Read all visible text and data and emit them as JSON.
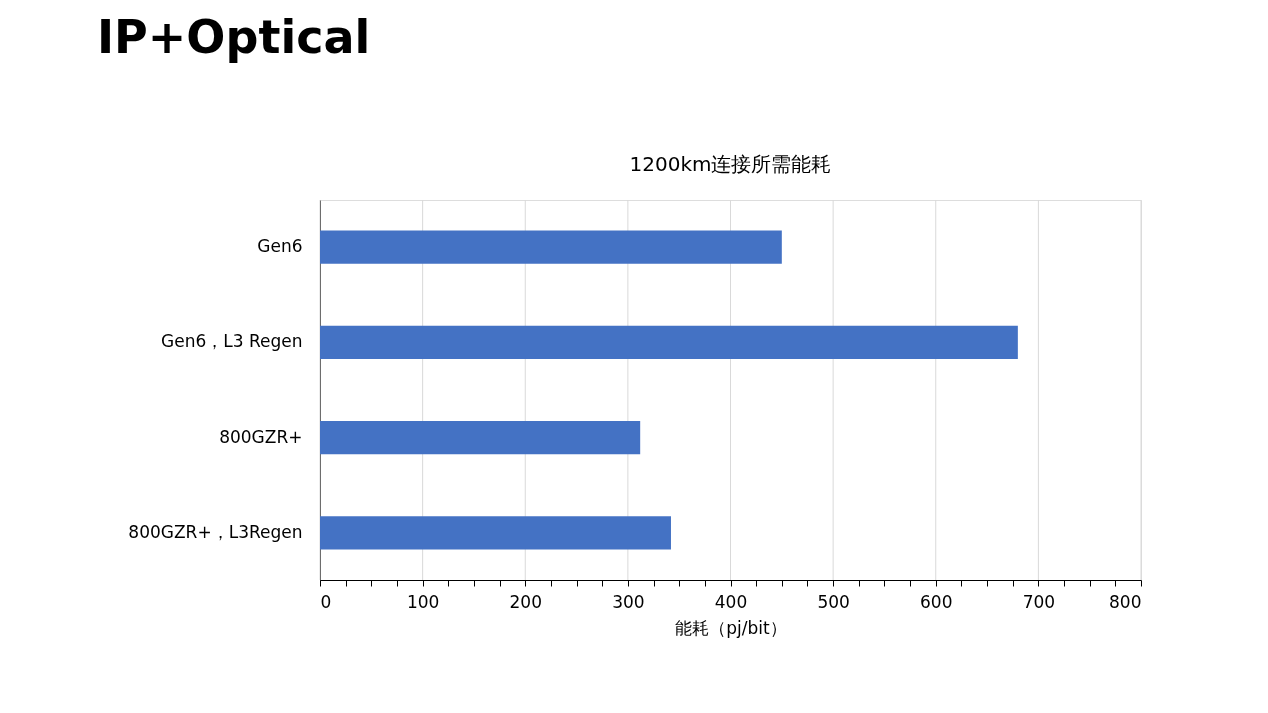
{
  "chart_data": {
    "type": "bar",
    "orientation": "horizontal",
    "title": "IP+Optical",
    "subtitle": "1200km连接所需能耗",
    "xlabel": "能耗（pj/bit）",
    "categories": [
      "Gen6",
      "Gen6，L3 Regen",
      "800GZR+",
      "800GZR+，L3Regen"
    ],
    "values": [
      450,
      680,
      312,
      342
    ],
    "color": "#4472c4",
    "xlim": [
      0,
      800
    ],
    "xticks": [
      0,
      {
        "value": 25,
        "label": null
      },
      {
        "value": 50,
        "label": null
      },
      {
        "value": 75,
        "label": null
      },
      100,
      {
        "value": 125,
        "label": null
      },
      {
        "value": 150,
        "label": null
      },
      {
        "value": 175,
        "label": null
      },
      200,
      {
        "value": 225,
        "label": null
      },
      {
        "value": 250,
        "label": null
      },
      {
        "value": 275,
        "label": null
      },
      300,
      {
        "value": 325,
        "label": null
      },
      {
        "value": 350,
        "label": null
      },
      {
        "value": 375,
        "label": null
      },
      400,
      {
        "value": 425,
        "label": null
      },
      {
        "value": 450,
        "label": null
      },
      {
        "value": 475,
        "label": null
      },
      500,
      {
        "value": 525,
        "label": null
      },
      {
        "value": 550,
        "label": null
      },
      {
        "value": 575,
        "label": null
      },
      600,
      {
        "value": 625,
        "label": null
      },
      {
        "value": 650,
        "label": null
      },
      {
        "value": 675,
        "label": null
      },
      700,
      {
        "value": 725,
        "label": null
      },
      {
        "value": 750,
        "label": null
      },
      {
        "value": 775,
        "label": null
      },
      800
    ],
    "grid": "x"
  }
}
